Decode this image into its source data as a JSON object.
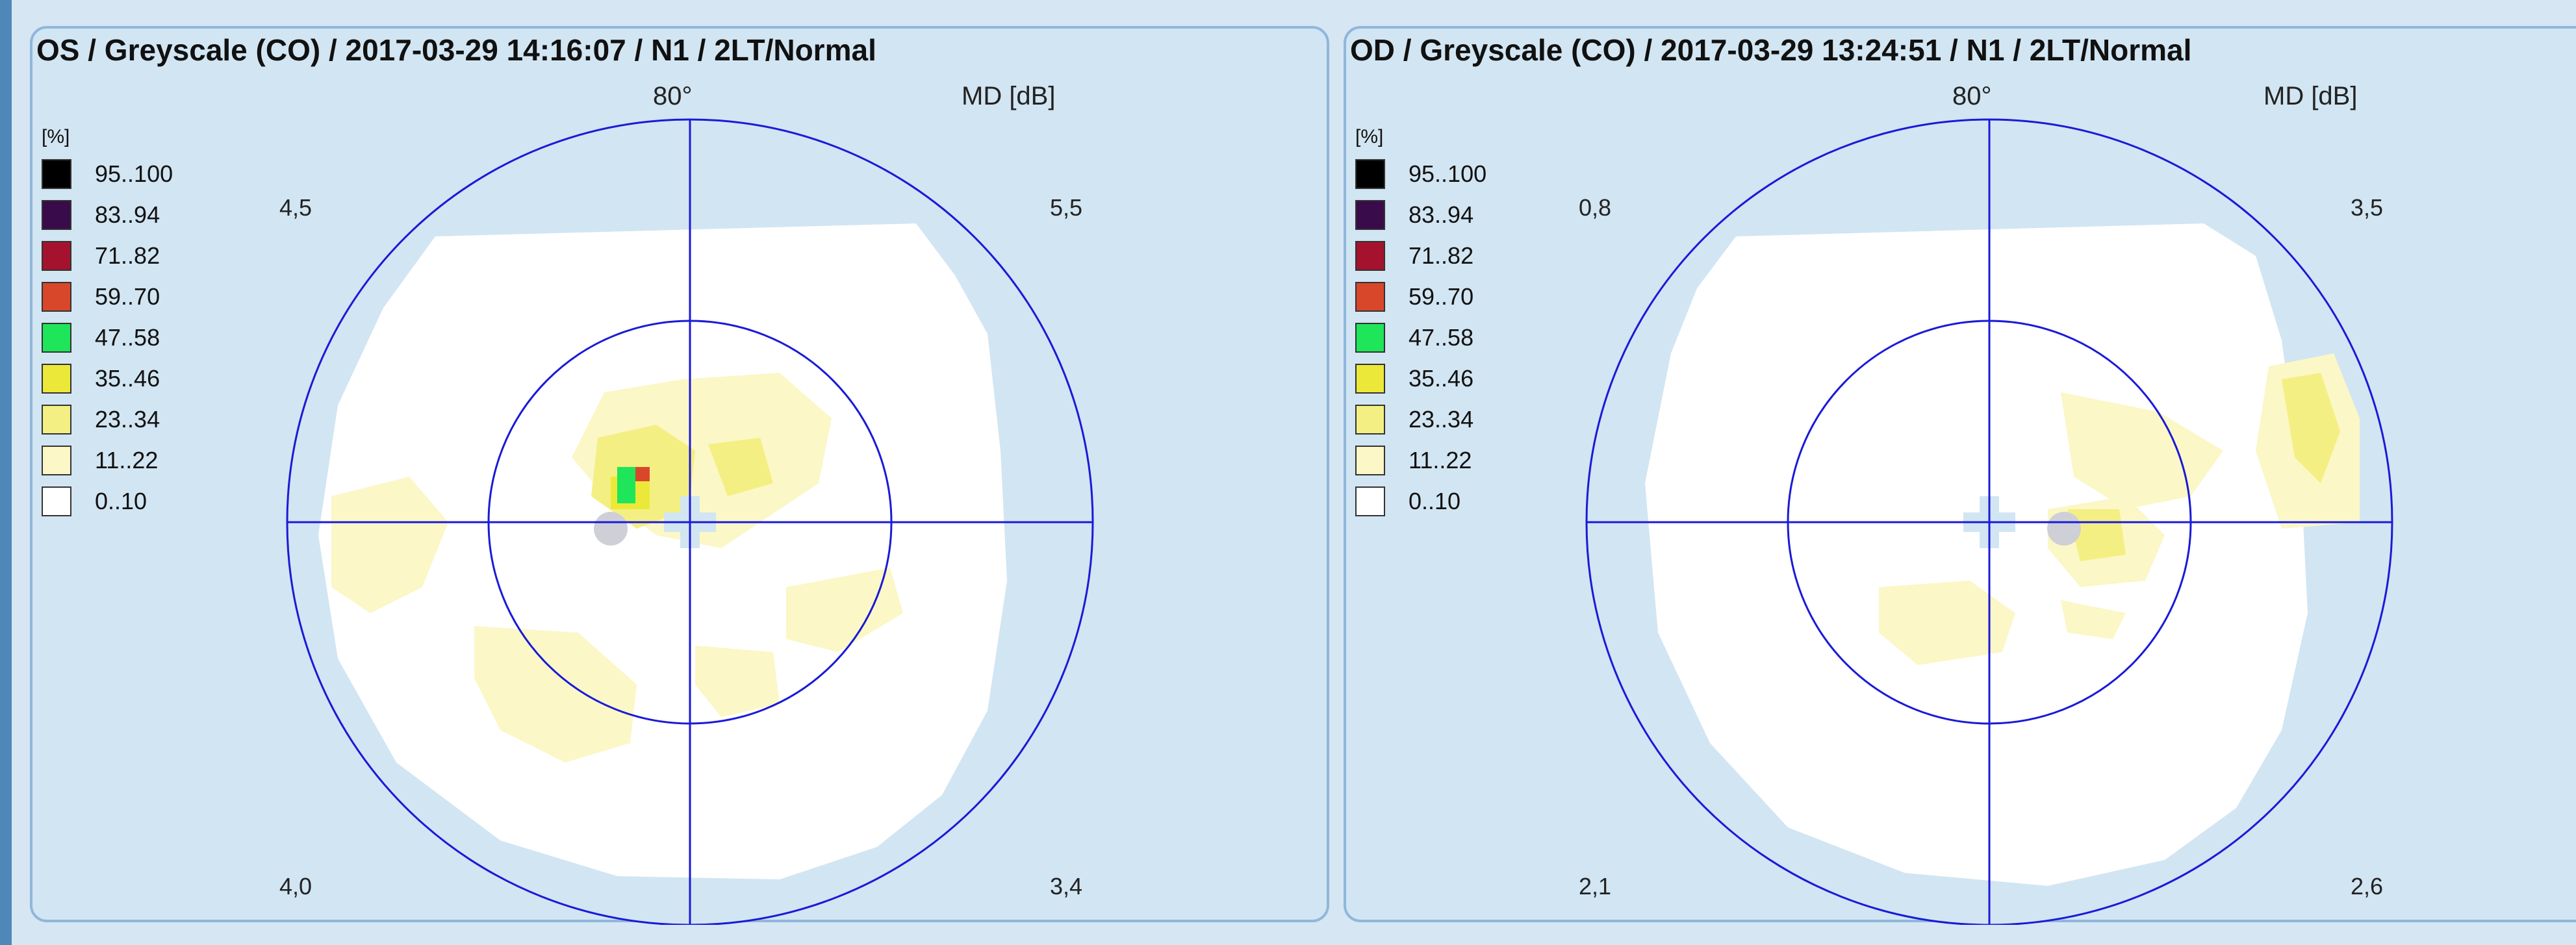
{
  "legend": {
    "unit": "[%]",
    "items": [
      {
        "label": "95..100",
        "color": "#000000"
      },
      {
        "label": "83..94",
        "color": "#3a0b4a"
      },
      {
        "label": "71..82",
        "color": "#a5122d"
      },
      {
        "label": "59..70",
        "color": "#d9472b"
      },
      {
        "label": "47..58",
        "color": "#1ee55a"
      },
      {
        "label": "35..46",
        "color": "#ece83a"
      },
      {
        "label": "23..34",
        "color": "#f4ef82"
      },
      {
        "label": "11..22",
        "color": "#fbf7c6"
      },
      {
        "label": "0..10",
        "color": "#ffffff"
      }
    ]
  },
  "panels": {
    "os": {
      "title": "OS / Greyscale (CO) / 2017-03-29 14:16:07 / N1 / 2LT/Normal",
      "angle": "80°",
      "md_label": "MD [dB]",
      "quadrants": {
        "top_left": "4,5",
        "top_right": "5,5",
        "bottom_left": "4,0",
        "bottom_right": "3,4"
      }
    },
    "od": {
      "title": "OD / Greyscale (CO) / 2017-03-29 13:24:51 / N1 / 2LT/Normal",
      "angle": "80°",
      "md_label": "MD [dB]",
      "quadrants": {
        "top_left": "0,8",
        "top_right": "3,5",
        "bottom_left": "2,1",
        "bottom_right": "2,6"
      }
    }
  }
}
